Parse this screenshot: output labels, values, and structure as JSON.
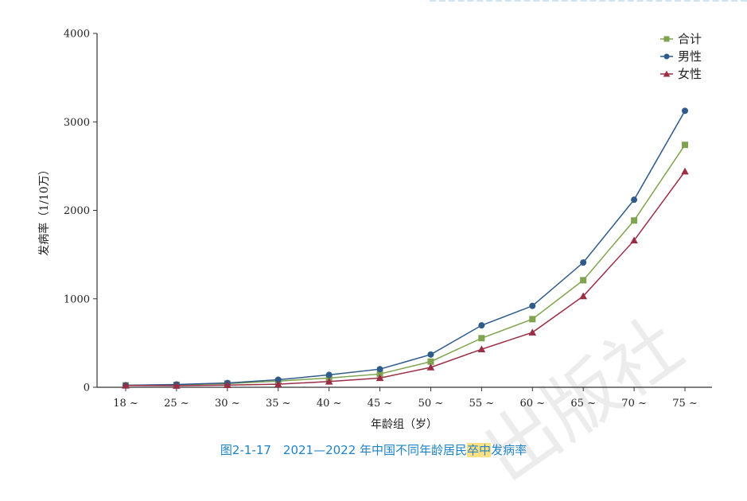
{
  "chart_data": {
    "type": "line",
    "title": "",
    "xlabel": "年龄组（岁）",
    "ylabel": "发病率（1/10万）",
    "categories": [
      "18 ~",
      "25 ~",
      "30 ~",
      "35 ~",
      "40 ~",
      "45 ~",
      "50 ~",
      "55 ~",
      "60 ~",
      "65 ~",
      "70 ~",
      "75 ~"
    ],
    "ylim": [
      0,
      4000
    ],
    "yticks": [
      0,
      1000,
      2000,
      3000,
      4000
    ],
    "legend_position": "top-right",
    "grid": false,
    "series": [
      {
        "name": "合计",
        "color": "#7fa34f",
        "marker": "square",
        "values": [
          22,
          28,
          42,
          70,
          105,
          150,
          290,
          555,
          770,
          1210,
          1885,
          2740
        ]
      },
      {
        "name": "男性",
        "color": "#2f5b8a",
        "marker": "circle",
        "values": [
          22,
          32,
          48,
          85,
          140,
          205,
          370,
          700,
          920,
          1410,
          2120,
          3125
        ]
      },
      {
        "name": "女性",
        "color": "#9b2d45",
        "marker": "triangle",
        "values": [
          20,
          18,
          25,
          35,
          65,
          105,
          225,
          430,
          620,
          1030,
          1660,
          2440
        ]
      }
    ]
  },
  "caption": {
    "prefix": "图2-1-17　2021—2022 年中国不同年龄居民",
    "highlight": "卒中",
    "suffix": "发病率"
  },
  "watermark": "出版社"
}
